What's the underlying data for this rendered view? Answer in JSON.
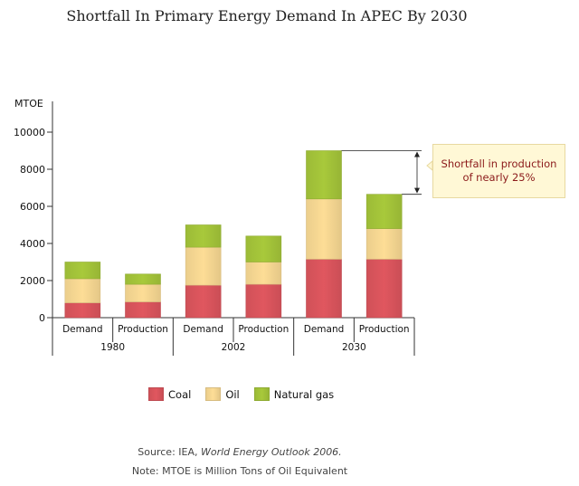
{
  "title": "Shortfall In Primary Energy Demand In APEC By 2030",
  "colors": {
    "coal": "#e0575f",
    "oil": "#fddd96",
    "gas": "#a8c93b"
  },
  "chart_data": {
    "type": "bar",
    "stacked": true,
    "ylabel": "MTOE",
    "ylim": [
      0,
      10000
    ],
    "yticks": [
      "0",
      "2000",
      "4000",
      "6000",
      "8000",
      "10000"
    ],
    "groups": [
      "1980",
      "2002",
      "2030"
    ],
    "categories": [
      "Demand",
      "Production",
      "Demand",
      "Production",
      "Demand",
      "Production"
    ],
    "series": [
      {
        "name": "Coal",
        "values": [
          800,
          850,
          1750,
          1800,
          3150,
          3150
        ]
      },
      {
        "name": "Oil",
        "values": [
          1300,
          950,
          2050,
          1200,
          3250,
          1650
        ]
      },
      {
        "name": "Natural gas",
        "values": [
          900,
          550,
          1200,
          1400,
          2600,
          1850
        ]
      }
    ],
    "annotation": "Shortfall in production of nearly 25%",
    "legend_position": "bottom"
  },
  "footer": {
    "source_prefix": "Source: IEA, ",
    "source_title": "World Energy Outlook 2006.",
    "note": "Note: MTOE is Million Tons of Oil Equivalent"
  }
}
